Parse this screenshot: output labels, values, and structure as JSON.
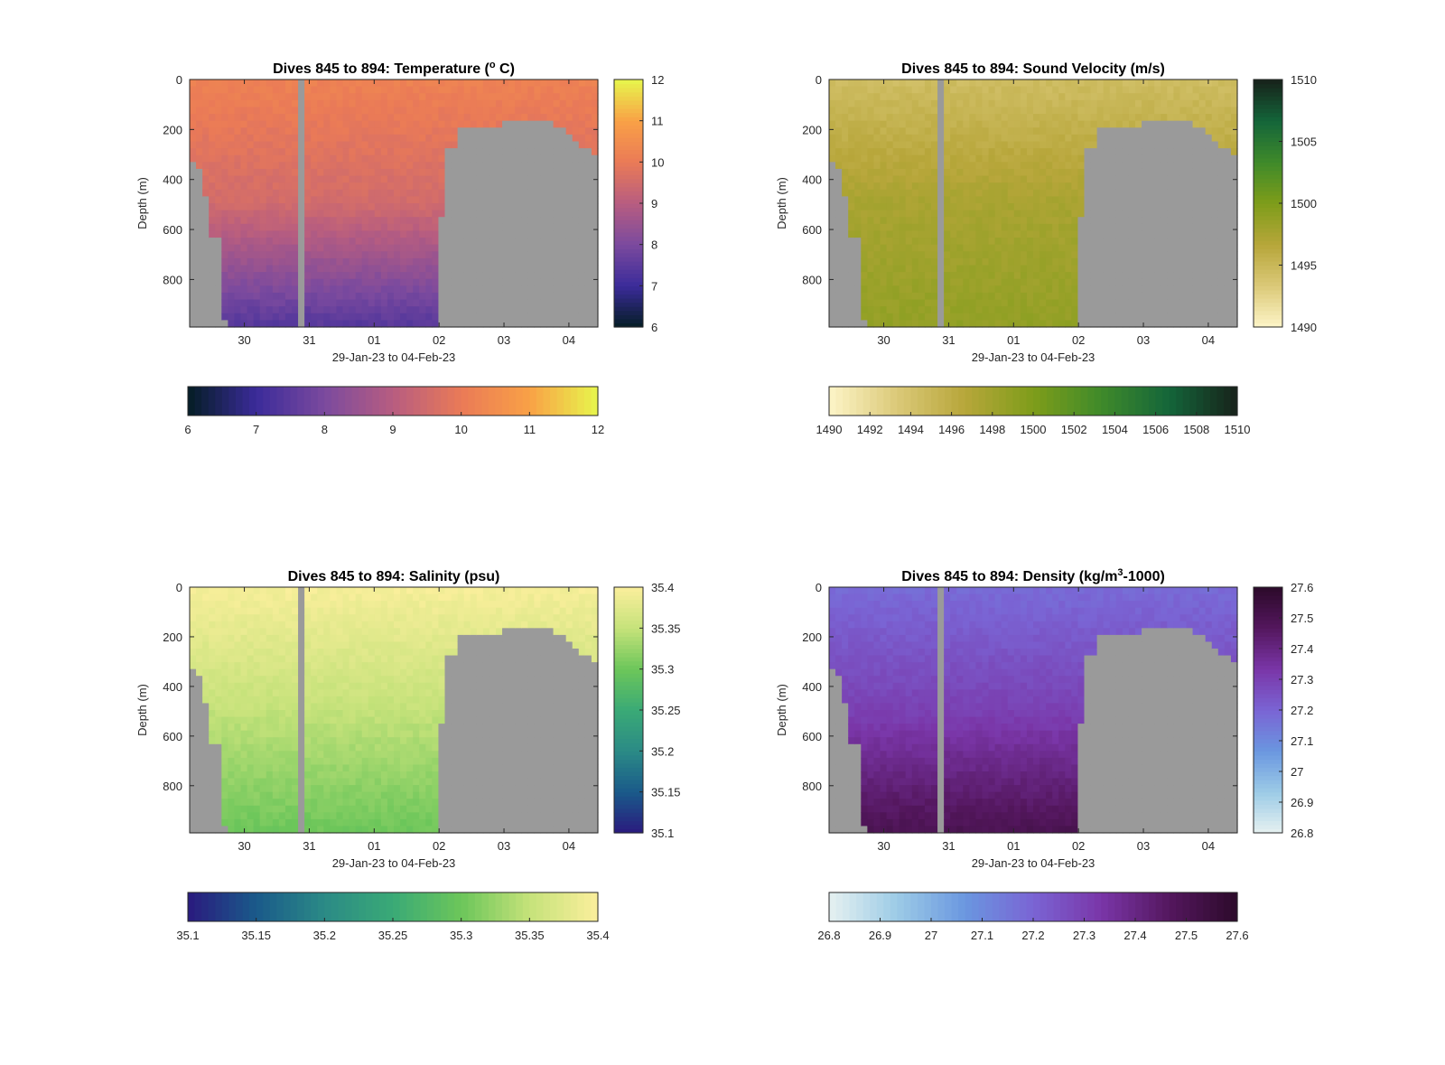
{
  "figure": {
    "background": "#ffffff",
    "mask_color": "#9a9a9a"
  },
  "chart_data": [
    {
      "type": "heatmap",
      "title": "Dives 845 to 894: Temperature (",
      "title_unit_sup": "o",
      "title_tail": " C)",
      "xlabel": "29-Jan-23 to 04-Feb-23",
      "ylabel": "Depth (m)",
      "x_ticks": [
        "30",
        "31",
        "01",
        "02",
        "03",
        "04"
      ],
      "y_ticks": [
        "0",
        "200",
        "400",
        "600",
        "800"
      ],
      "ylim": [
        0,
        990
      ],
      "y_reversed": true,
      "colormap": [
        "#041d24",
        "#3b2b9a",
        "#7b4a9e",
        "#b75d80",
        "#ea7a57",
        "#f9a146",
        "#e7f64c"
      ],
      "clim": [
        6,
        12
      ],
      "right_colorbar_ticks": [
        "6",
        "7",
        "8",
        "9",
        "10",
        "11",
        "12"
      ],
      "bottom_colorbar_ticks": [
        "6",
        "7",
        "8",
        "9",
        "10",
        "11",
        "12"
      ],
      "profile": {
        "surface": 10.2,
        "mid": 9.5,
        "deep": 7.4
      }
    },
    {
      "type": "heatmap",
      "title": "Dives 845 to 894: Sound Velocity (m/s)",
      "xlabel": "29-Jan-23 to 04-Feb-23",
      "ylabel": "Depth (m)",
      "x_ticks": [
        "30",
        "31",
        "01",
        "02",
        "03",
        "04"
      ],
      "y_ticks": [
        "0",
        "200",
        "400",
        "600",
        "800"
      ],
      "ylim": [
        0,
        990
      ],
      "y_reversed": true,
      "colormap": [
        "#fdf5c8",
        "#dbc978",
        "#b7a63a",
        "#7e9d1a",
        "#3f8a2a",
        "#14653a",
        "#17221a"
      ],
      "clim": [
        1490,
        1510
      ],
      "right_colorbar_ticks": [
        "1490",
        "1495",
        "1500",
        "1505",
        "1510"
      ],
      "bottom_colorbar_ticks": [
        "1490",
        "1492",
        "1494",
        "1496",
        "1498",
        "1500",
        "1502",
        "1504",
        "1506",
        "1508",
        "1510"
      ],
      "profile": {
        "surface": 1494.5,
        "mid": 1497.5,
        "deep": 1498.8
      }
    },
    {
      "type": "heatmap",
      "title": "Dives 845 to 894: Salinity (psu)",
      "xlabel": "29-Jan-23 to 04-Feb-23",
      "ylabel": "Depth (m)",
      "x_ticks": [
        "30",
        "31",
        "01",
        "02",
        "03",
        "04"
      ],
      "y_ticks": [
        "0",
        "200",
        "400",
        "600",
        "800"
      ],
      "ylim": [
        0,
        990
      ],
      "y_reversed": true,
      "colormap": [
        "#2a1a7e",
        "#1a5a8a",
        "#2b8a86",
        "#3aaa76",
        "#6cc65a",
        "#c5e27a",
        "#fbef9c"
      ],
      "clim": [
        35.1,
        35.4
      ],
      "right_colorbar_ticks": [
        "35.1",
        "35.15",
        "35.2",
        "35.25",
        "35.3",
        "35.35",
        "35.4"
      ],
      "bottom_colorbar_ticks": [
        "35.1",
        "35.15",
        "35.2",
        "35.25",
        "35.3",
        "35.35",
        "35.4"
      ],
      "profile": {
        "surface": 35.395,
        "mid": 35.35,
        "deep": 35.3
      }
    },
    {
      "type": "heatmap",
      "title": "Dives 845 to 894: Density (kg/m",
      "title_unit_sup": "3",
      "title_tail": "-1000)",
      "xlabel": "29-Jan-23 to 04-Feb-23",
      "ylabel": "Depth (m)",
      "x_ticks": [
        "30",
        "31",
        "01",
        "02",
        "03",
        "04"
      ],
      "y_ticks": [
        "0",
        "200",
        "400",
        "600",
        "800"
      ],
      "ylim": [
        0,
        990
      ],
      "y_reversed": true,
      "colormap": [
        "#e6f1f0",
        "#9ccbe6",
        "#6a97e0",
        "#7a64d4",
        "#7a36a8",
        "#54175e",
        "#2c0a2a"
      ],
      "clim": [
        26.8,
        27.6
      ],
      "right_colorbar_ticks": [
        "26.8",
        "26.9",
        "27",
        "27.1",
        "27.2",
        "27.3",
        "27.4",
        "27.5",
        "27.6"
      ],
      "bottom_colorbar_ticks": [
        "26.8",
        "26.9",
        "27",
        "27.1",
        "27.2",
        "27.3",
        "27.4",
        "27.5",
        "27.6"
      ],
      "profile": {
        "surface": 27.18,
        "mid": 27.3,
        "deep": 27.5
      }
    }
  ]
}
